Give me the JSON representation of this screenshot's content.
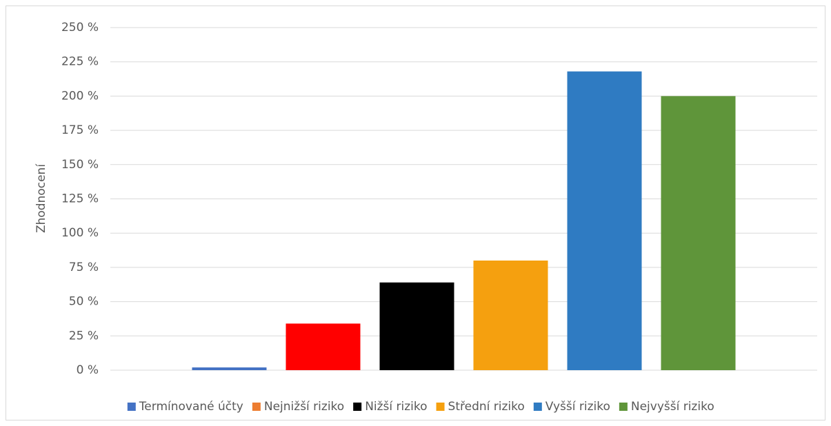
{
  "chart_data": {
    "type": "bar",
    "y_label": "Zhodnocení",
    "categories": [
      null
    ],
    "series": [
      {
        "name": "Termínované účty",
        "color": "#4472c4",
        "legend_color": "#4472c4",
        "values": [
          2
        ]
      },
      {
        "name": "Nejnižší riziko",
        "color": "#ff0000",
        "legend_color": "#ed7d31",
        "values": [
          34
        ]
      },
      {
        "name": "Nižší riziko",
        "color": "#000000",
        "legend_color": "#000000",
        "values": [
          64
        ]
      },
      {
        "name": "Střední riziko",
        "color": "#f5a00f",
        "legend_color": "#f5a00f",
        "values": [
          80
        ]
      },
      {
        "name": "Vyšší riziko",
        "color": "#2f7bc2",
        "legend_color": "#2f7bc2",
        "values": [
          218
        ]
      },
      {
        "name": "Nejvyšší riziko",
        "color": "#5f953a",
        "legend_color": "#5f953a",
        "values": [
          200
        ]
      }
    ],
    "ylim": [
      0,
      250
    ],
    "yticks": [
      {
        "value": 0,
        "label": "0 %"
      },
      {
        "value": 25,
        "label": "25 %"
      },
      {
        "value": 50,
        "label": "50 %"
      },
      {
        "value": 75,
        "label": "75 %"
      },
      {
        "value": 100,
        "label": "100 %"
      },
      {
        "value": 125,
        "label": "125 %"
      },
      {
        "value": 150,
        "label": "150 %"
      },
      {
        "value": 175,
        "label": "175 %"
      },
      {
        "value": 200,
        "label": "200 %"
      },
      {
        "value": 225,
        "label": "225 %"
      },
      {
        "value": 250,
        "label": "250 %"
      }
    ],
    "grid": true,
    "legend": "bottom"
  }
}
